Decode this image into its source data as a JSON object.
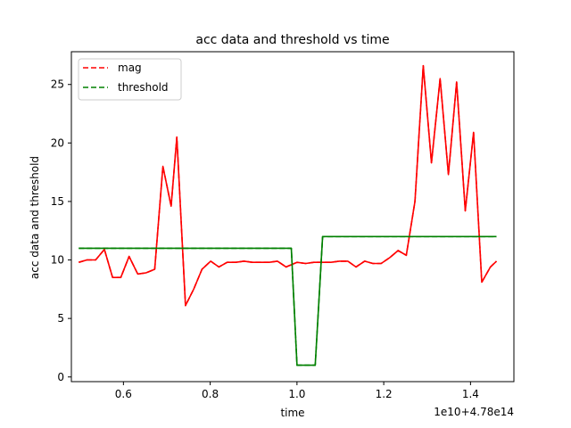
{
  "chart_data": {
    "type": "line",
    "title": "acc data and threshold vs time",
    "xlabel": "time",
    "ylabel": "acc data and threshold",
    "x_offset_label": "1e10+4.78e14",
    "xlim": [
      0.48,
      1.5
    ],
    "ylim": [
      -0.4,
      27.8
    ],
    "x_ticks": [
      {
        "value": 0.6,
        "label": "0.6"
      },
      {
        "value": 0.8,
        "label": "0.8"
      },
      {
        "value": 1.0,
        "label": "1.0"
      },
      {
        "value": 1.2,
        "label": "1.2"
      },
      {
        "value": 1.4,
        "label": "1.4"
      }
    ],
    "y_ticks": [
      {
        "value": 0,
        "label": "0"
      },
      {
        "value": 5,
        "label": "5"
      },
      {
        "value": 10,
        "label": "10"
      },
      {
        "value": 15,
        "label": "15"
      },
      {
        "value": 20,
        "label": "20"
      },
      {
        "value": 25,
        "label": "25"
      }
    ],
    "grid": false,
    "legend_position": "top-left",
    "series": [
      {
        "name": "mag",
        "color": "#ff0000",
        "style": "dashed",
        "x": [
          0.497,
          0.516,
          0.536,
          0.556,
          0.575,
          0.594,
          0.613,
          0.633,
          0.652,
          0.672,
          0.691,
          0.71,
          0.723,
          0.743,
          0.762,
          0.781,
          0.801,
          0.82,
          0.839,
          0.859,
          0.878,
          0.897,
          0.917,
          0.936,
          0.955,
          0.975,
          1.0,
          1.02,
          1.039,
          1.059,
          1.078,
          1.098,
          1.117,
          1.136,
          1.156,
          1.175,
          1.194,
          1.214,
          1.233,
          1.252,
          1.272,
          1.291,
          1.31,
          1.33,
          1.349,
          1.368,
          1.388,
          1.407,
          1.426,
          1.446,
          1.46
        ],
        "y": [
          9.8,
          10.0,
          10.0,
          10.9,
          8.5,
          8.5,
          10.3,
          8.8,
          8.9,
          9.2,
          18.0,
          14.6,
          20.5,
          6.1,
          7.5,
          9.2,
          9.9,
          9.4,
          9.8,
          9.8,
          9.9,
          9.8,
          9.8,
          9.8,
          9.9,
          9.4,
          9.8,
          9.7,
          9.8,
          9.8,
          9.8,
          9.9,
          9.9,
          9.4,
          9.9,
          9.7,
          9.7,
          10.2,
          10.8,
          10.4,
          15.0,
          26.6,
          18.3,
          25.5,
          17.3,
          25.2,
          14.2,
          20.9,
          8.1,
          9.4,
          9.9
        ],
        "x_fix": true
      },
      {
        "name": "threshold",
        "color": "#008000",
        "style": "dashed",
        "x": [
          0.497,
          0.987,
          1.0,
          1.042,
          1.059,
          1.46
        ],
        "y": [
          11.0,
          11.0,
          1.0,
          1.0,
          12.0,
          12.0
        ]
      }
    ]
  }
}
